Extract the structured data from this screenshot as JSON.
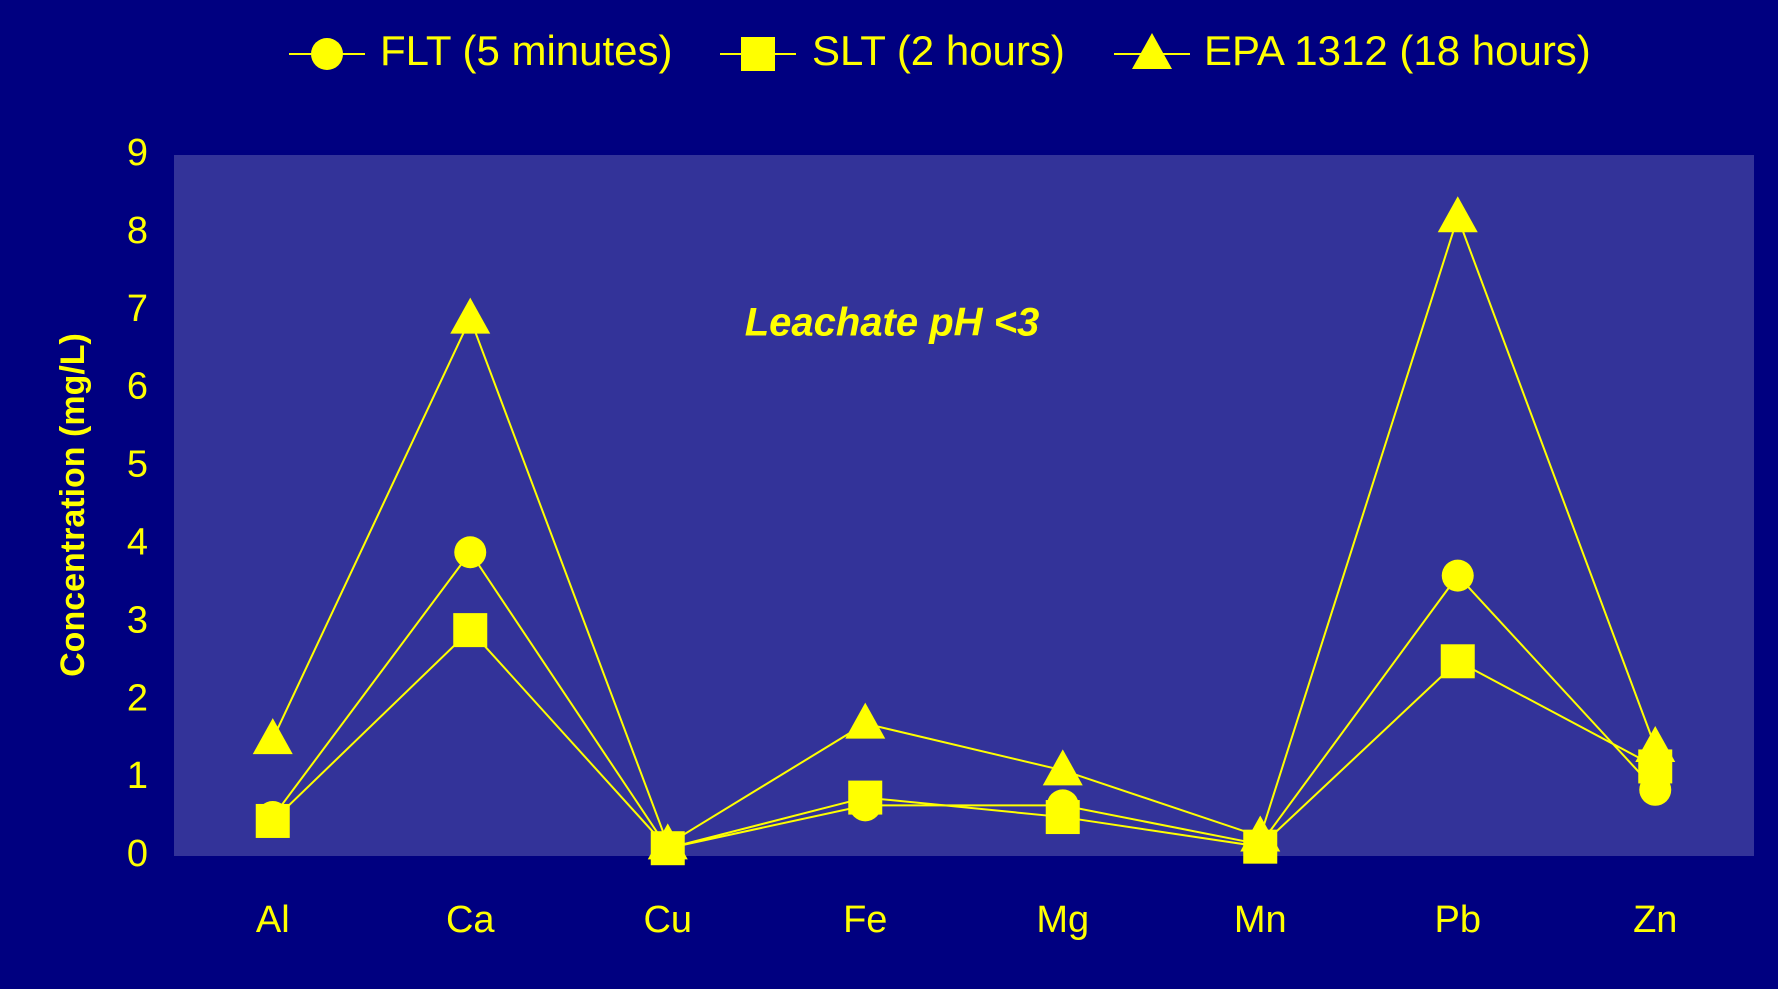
{
  "chart_data": {
    "type": "line",
    "annotation": "Leachate pH <3",
    "y_label": "Concentration (mg/L)",
    "categories": [
      "Al",
      "Ca",
      "Cu",
      "Fe",
      "Mg",
      "Mn",
      "Pb",
      "Zn"
    ],
    "series": [
      {
        "name": "FLT (5 minutes)",
        "color": "#ffff00",
        "marker": "circle",
        "values": [
          0.5,
          3.9,
          0.1,
          0.65,
          0.65,
          0.15,
          3.6,
          0.85
        ]
      },
      {
        "name": "SLT (2 hours)",
        "color": "#ffff00",
        "marker": "square",
        "values": [
          0.45,
          2.9,
          0.1,
          0.75,
          0.5,
          0.12,
          2.5,
          1.15
        ]
      },
      {
        "name": "EPA 1312 (18 hours)",
        "color": "#ffff00",
        "marker": "triangle",
        "values": [
          1.5,
          6.9,
          0.15,
          1.7,
          1.1,
          0.25,
          8.2,
          1.4
        ]
      }
    ],
    "ylim": [
      0,
      9
    ],
    "yticks": [
      0,
      1,
      2,
      3,
      4,
      5,
      6,
      7,
      8,
      9
    ],
    "grid": false,
    "legend": "top"
  }
}
